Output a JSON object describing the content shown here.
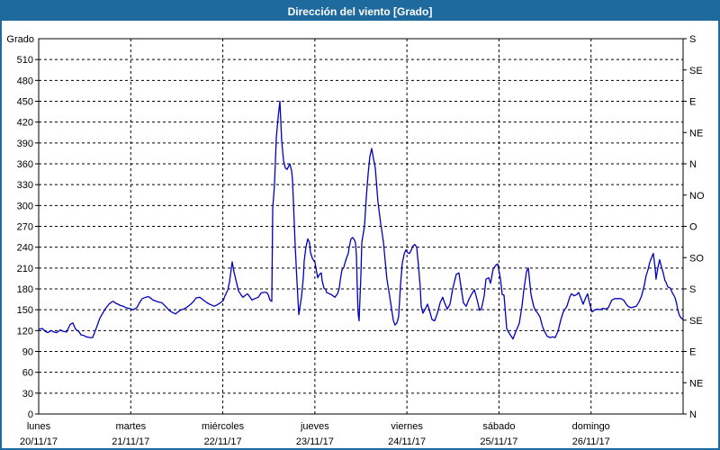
{
  "window": {
    "title_bar": "Dirección del viento [Grado]"
  },
  "chart_data": {
    "type": "line",
    "title": "Dirección del viento [Grado]",
    "grid": "dashed",
    "legend": "none",
    "colors": {
      "title_bar_bg": "#1e6a9e",
      "title_text": "#ffffff",
      "frame": "#1e6a9e",
      "grid": "#000000",
      "plot_bg": "#ffffff",
      "series_line": "#0000bf"
    },
    "x_axis": {
      "day_count": 7,
      "days": [
        {
          "name": "lunes",
          "date": "20/11/17"
        },
        {
          "name": "martes",
          "date": "21/11/17"
        },
        {
          "name": "miércoles",
          "date": "22/11/17"
        },
        {
          "name": "jueves",
          "date": "23/11/17"
        },
        {
          "name": "viernes",
          "date": "24/11/17"
        },
        {
          "name": "sábado",
          "date": "25/11/17"
        },
        {
          "name": "domingo",
          "date": "26/11/17"
        }
      ]
    },
    "y_left": {
      "label": "Grado",
      "min": 0,
      "max": 540,
      "tick_step": 30,
      "ticks": [
        0,
        30,
        60,
        90,
        120,
        150,
        180,
        210,
        240,
        270,
        300,
        330,
        360,
        390,
        420,
        450,
        480,
        510
      ]
    },
    "y_right": {
      "unit": "compass",
      "ticks": [
        {
          "deg": 540,
          "label": "S"
        },
        {
          "deg": 495,
          "label": "SE"
        },
        {
          "deg": 450,
          "label": "E"
        },
        {
          "deg": 405,
          "label": "NE"
        },
        {
          "deg": 360,
          "label": "N"
        },
        {
          "deg": 315,
          "label": "NO"
        },
        {
          "deg": 270,
          "label": "O"
        },
        {
          "deg": 225,
          "label": "SO"
        },
        {
          "deg": 180,
          "label": "S"
        },
        {
          "deg": 135,
          "label": "SE"
        },
        {
          "deg": 90,
          "label": "E"
        },
        {
          "deg": 45,
          "label": "NE"
        },
        {
          "deg": 0,
          "label": "N"
        }
      ]
    },
    "series": [
      {
        "name": "Dirección del viento",
        "unit": "Grado",
        "color": "#0000bf",
        "points": [
          [
            0.0,
            122
          ],
          [
            0.039,
            123
          ],
          [
            0.068,
            119
          ],
          [
            0.098,
            117
          ],
          [
            0.137,
            120
          ],
          [
            0.166,
            118
          ],
          [
            0.196,
            117
          ],
          [
            0.235,
            121
          ],
          [
            0.264,
            119
          ],
          [
            0.303,
            118
          ],
          [
            0.342,
            129
          ],
          [
            0.371,
            131
          ],
          [
            0.401,
            122
          ],
          [
            0.44,
            118
          ],
          [
            0.459,
            114
          ],
          [
            0.489,
            113
          ],
          [
            0.518,
            111
          ],
          [
            0.557,
            110
          ],
          [
            0.587,
            110
          ],
          [
            0.606,
            117
          ],
          [
            0.635,
            127
          ],
          [
            0.665,
            138
          ],
          [
            0.704,
            147
          ],
          [
            0.733,
            153
          ],
          [
            0.763,
            158
          ],
          [
            0.792,
            161
          ],
          [
            0.811,
            162
          ],
          [
            0.841,
            159
          ],
          [
            0.86,
            158
          ],
          [
            0.89,
            156
          ],
          [
            0.919,
            155
          ],
          [
            0.948,
            153
          ],
          [
            0.978,
            152
          ],
          [
            1.007,
            151
          ],
          [
            1.027,
            150
          ],
          [
            1.066,
            153
          ],
          [
            1.095,
            160
          ],
          [
            1.124,
            166
          ],
          [
            1.163,
            168
          ],
          [
            1.193,
            169
          ],
          [
            1.222,
            166
          ],
          [
            1.242,
            164
          ],
          [
            1.281,
            162
          ],
          [
            1.31,
            161
          ],
          [
            1.339,
            160
          ],
          [
            1.378,
            155
          ],
          [
            1.418,
            149
          ],
          [
            1.457,
            146
          ],
          [
            1.486,
            144
          ],
          [
            1.515,
            147
          ],
          [
            1.535,
            149
          ],
          [
            1.574,
            151
          ],
          [
            1.603,
            153
          ],
          [
            1.633,
            156
          ],
          [
            1.652,
            158
          ],
          [
            1.682,
            162
          ],
          [
            1.711,
            167
          ],
          [
            1.75,
            168
          ],
          [
            1.779,
            165
          ],
          [
            1.799,
            163
          ],
          [
            1.828,
            160
          ],
          [
            1.857,
            158
          ],
          [
            1.877,
            157
          ],
          [
            1.906,
            155
          ],
          [
            1.936,
            157
          ],
          [
            1.975,
            160
          ],
          [
            2.004,
            163
          ],
          [
            2.024,
            170
          ],
          [
            2.053,
            178
          ],
          [
            2.073,
            190
          ],
          [
            2.102,
            219
          ],
          [
            2.121,
            205
          ],
          [
            2.151,
            188
          ],
          [
            2.17,
            177
          ],
          [
            2.2,
            171
          ],
          [
            2.219,
            168
          ],
          [
            2.248,
            171
          ],
          [
            2.268,
            173
          ],
          [
            2.297,
            168
          ],
          [
            2.317,
            164
          ],
          [
            2.346,
            166
          ],
          [
            2.385,
            168
          ],
          [
            2.415,
            174
          ],
          [
            2.444,
            175
          ],
          [
            2.473,
            175
          ],
          [
            2.493,
            172
          ],
          [
            2.512,
            164
          ],
          [
            2.532,
            162
          ],
          [
            2.542,
            295
          ],
          [
            2.561,
            330
          ],
          [
            2.581,
            397
          ],
          [
            2.6,
            425
          ],
          [
            2.62,
            450
          ],
          [
            2.64,
            393
          ],
          [
            2.659,
            365
          ],
          [
            2.679,
            354
          ],
          [
            2.698,
            352
          ],
          [
            2.728,
            360
          ],
          [
            2.747,
            350
          ],
          [
            2.757,
            337
          ],
          [
            2.777,
            274
          ],
          [
            2.786,
            242
          ],
          [
            2.806,
            190
          ],
          [
            2.825,
            143
          ],
          [
            2.845,
            160
          ],
          [
            2.855,
            168
          ],
          [
            2.874,
            196
          ],
          [
            2.884,
            220
          ],
          [
            2.903,
            240
          ],
          [
            2.923,
            252
          ],
          [
            2.943,
            246
          ],
          [
            2.952,
            233
          ],
          [
            2.972,
            224
          ],
          [
            3.001,
            218
          ],
          [
            3.021,
            203
          ],
          [
            3.031,
            196
          ],
          [
            3.05,
            201
          ],
          [
            3.07,
            203
          ],
          [
            3.079,
            192
          ],
          [
            3.099,
            181
          ],
          [
            3.119,
            179
          ],
          [
            3.128,
            175
          ],
          [
            3.158,
            173
          ],
          [
            3.177,
            172
          ],
          [
            3.197,
            170
          ],
          [
            3.216,
            168
          ],
          [
            3.246,
            173
          ],
          [
            3.265,
            181
          ],
          [
            3.275,
            192
          ],
          [
            3.294,
            207
          ],
          [
            3.314,
            211
          ],
          [
            3.324,
            216
          ],
          [
            3.343,
            224
          ],
          [
            3.363,
            231
          ],
          [
            3.373,
            240
          ],
          [
            3.392,
            252
          ],
          [
            3.412,
            254
          ],
          [
            3.431,
            250
          ],
          [
            3.441,
            246
          ],
          [
            3.451,
            229
          ],
          [
            3.461,
            180
          ],
          [
            3.47,
            145
          ],
          [
            3.48,
            134
          ],
          [
            3.5,
            200
          ],
          [
            3.51,
            246
          ],
          [
            3.519,
            254
          ],
          [
            3.539,
            270
          ],
          [
            3.558,
            310
          ],
          [
            3.578,
            345
          ],
          [
            3.597,
            370
          ],
          [
            3.617,
            382
          ],
          [
            3.636,
            368
          ],
          [
            3.656,
            354
          ],
          [
            3.685,
            306
          ],
          [
            3.715,
            274
          ],
          [
            3.744,
            248
          ],
          [
            3.764,
            220
          ],
          [
            3.783,
            194
          ],
          [
            3.812,
            170
          ],
          [
            3.832,
            152
          ],
          [
            3.852,
            135
          ],
          [
            3.871,
            128
          ],
          [
            3.891,
            131
          ],
          [
            3.91,
            140
          ],
          [
            3.93,
            185
          ],
          [
            3.949,
            216
          ],
          [
            3.969,
            230
          ],
          [
            3.989,
            236
          ],
          [
            4.008,
            232
          ],
          [
            4.028,
            231
          ],
          [
            4.047,
            236
          ],
          [
            4.067,
            242
          ],
          [
            4.086,
            244
          ],
          [
            4.106,
            240
          ],
          [
            4.125,
            215
          ],
          [
            4.145,
            181
          ],
          [
            4.155,
            155
          ],
          [
            4.174,
            145
          ],
          [
            4.194,
            150
          ],
          [
            4.223,
            158
          ],
          [
            4.243,
            150
          ],
          [
            4.272,
            136
          ],
          [
            4.301,
            134
          ],
          [
            4.331,
            145
          ],
          [
            4.36,
            160
          ],
          [
            4.389,
            168
          ],
          [
            4.409,
            160
          ],
          [
            4.438,
            151
          ],
          [
            4.468,
            158
          ],
          [
            4.497,
            180
          ],
          [
            4.536,
            201
          ],
          [
            4.565,
            203
          ],
          [
            4.585,
            185
          ],
          [
            4.614,
            160
          ],
          [
            4.644,
            155
          ],
          [
            4.673,
            165
          ],
          [
            4.702,
            172
          ],
          [
            4.732,
            179
          ],
          [
            4.761,
            165
          ],
          [
            4.79,
            149
          ],
          [
            4.81,
            152
          ],
          [
            4.839,
            170
          ],
          [
            4.859,
            194
          ],
          [
            4.888,
            196
          ],
          [
            4.908,
            188
          ],
          [
            4.937,
            209
          ],
          [
            4.966,
            214
          ],
          [
            4.986,
            216
          ],
          [
            5.015,
            195
          ],
          [
            5.035,
            172
          ],
          [
            5.054,
            171
          ],
          [
            5.084,
            123
          ],
          [
            5.103,
            118
          ],
          [
            5.123,
            114
          ],
          [
            5.152,
            108
          ],
          [
            5.181,
            118
          ],
          [
            5.22,
            130
          ],
          [
            5.25,
            155
          ],
          [
            5.269,
            177
          ],
          [
            5.299,
            205
          ],
          [
            5.318,
            210
          ],
          [
            5.348,
            172
          ],
          [
            5.377,
            155
          ],
          [
            5.396,
            149
          ],
          [
            5.416,
            146
          ],
          [
            5.445,
            140
          ],
          [
            5.475,
            125
          ],
          [
            5.494,
            119
          ],
          [
            5.523,
            112
          ],
          [
            5.553,
            110
          ],
          [
            5.582,
            111
          ],
          [
            5.611,
            110
          ],
          [
            5.641,
            119
          ],
          [
            5.67,
            135
          ],
          [
            5.699,
            147
          ],
          [
            5.738,
            155
          ],
          [
            5.768,
            168
          ],
          [
            5.787,
            173
          ],
          [
            5.817,
            170
          ],
          [
            5.846,
            172
          ],
          [
            5.865,
            175
          ],
          [
            5.895,
            165
          ],
          [
            5.914,
            158
          ],
          [
            5.944,
            168
          ],
          [
            5.963,
            173
          ],
          [
            5.983,
            160
          ],
          [
            6.002,
            151
          ],
          [
            6.012,
            147
          ],
          [
            6.041,
            150
          ],
          [
            6.071,
            151
          ],
          [
            6.1,
            150
          ],
          [
            6.129,
            152
          ],
          [
            6.159,
            151
          ],
          [
            6.188,
            153
          ],
          [
            6.227,
            164
          ],
          [
            6.256,
            166
          ],
          [
            6.295,
            166
          ],
          [
            6.325,
            166
          ],
          [
            6.354,
            164
          ],
          [
            6.383,
            158
          ],
          [
            6.403,
            155
          ],
          [
            6.432,
            153
          ],
          [
            6.461,
            154
          ],
          [
            6.491,
            155
          ],
          [
            6.52,
            161
          ],
          [
            6.549,
            170
          ],
          [
            6.579,
            185
          ],
          [
            6.598,
            199
          ],
          [
            6.618,
            207
          ],
          [
            6.637,
            218
          ],
          [
            6.657,
            225
          ],
          [
            6.676,
            231
          ],
          [
            6.696,
            211
          ],
          [
            6.706,
            194
          ],
          [
            6.725,
            210
          ],
          [
            6.745,
            222
          ],
          [
            6.764,
            212
          ],
          [
            6.784,
            203
          ],
          [
            6.803,
            192
          ],
          [
            6.813,
            190
          ],
          [
            6.833,
            183
          ],
          [
            6.862,
            181
          ],
          [
            6.881,
            175
          ],
          [
            6.911,
            168
          ],
          [
            6.93,
            159
          ],
          [
            6.94,
            151
          ],
          [
            6.959,
            142
          ],
          [
            6.979,
            138
          ],
          [
            6.998,
            136
          ]
        ]
      }
    ]
  }
}
